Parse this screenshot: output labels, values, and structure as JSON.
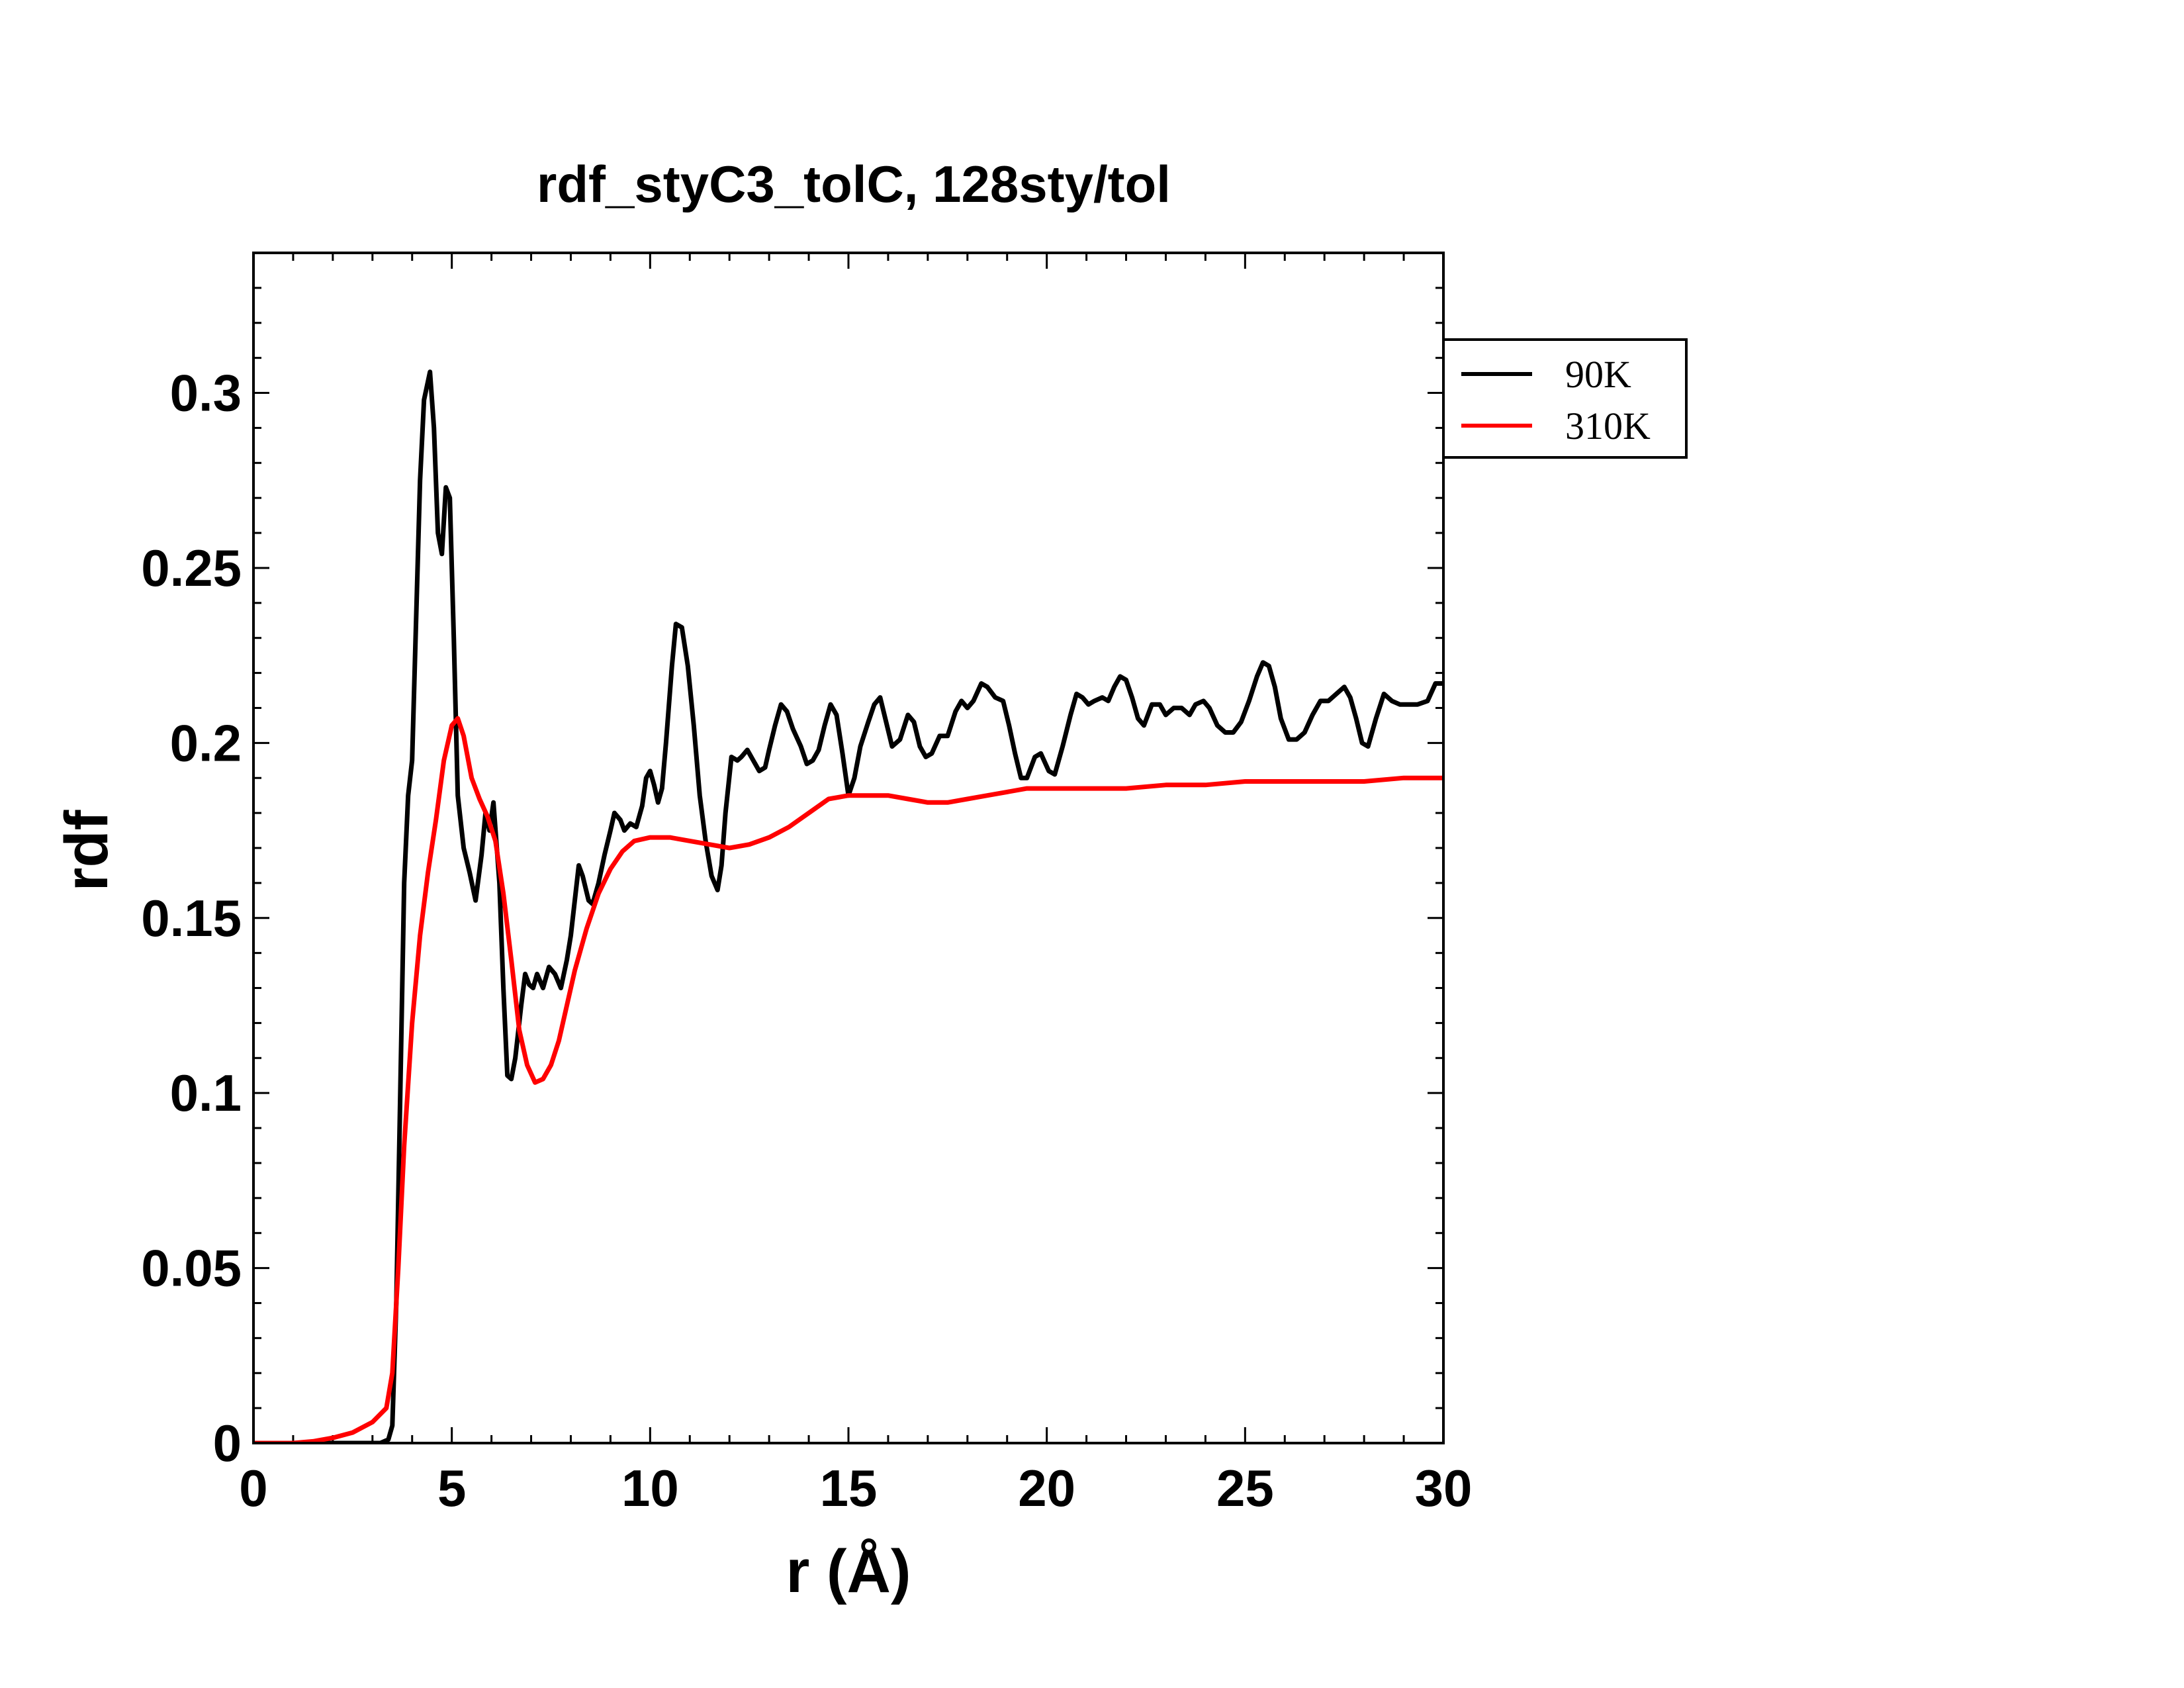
{
  "chart_data": {
    "type": "line",
    "title": "rdf_styC3_tolC, 128sty/tol",
    "xlabel": "r (Å)",
    "ylabel": "rdf",
    "xlim": [
      0,
      30
    ],
    "ylim": [
      0,
      0.34
    ],
    "x_ticks": [
      0,
      5,
      10,
      15,
      20,
      25,
      30
    ],
    "x_tick_labels": [
      "0",
      "5",
      "10",
      "15",
      "20",
      "25",
      "30"
    ],
    "y_ticks": [
      0,
      0.05,
      0.1,
      0.15,
      0.2,
      0.25,
      0.3
    ],
    "y_tick_labels": [
      "0",
      "0.05",
      "0.1",
      "0.15",
      "0.2",
      "0.25",
      "0.3"
    ],
    "grid": false,
    "legend_position": "outside-right-top",
    "series": [
      {
        "name": "90K",
        "color": "#000000",
        "points": [
          [
            0,
            0
          ],
          [
            3.2,
            0
          ],
          [
            3.4,
            0.001
          ],
          [
            3.5,
            0.005
          ],
          [
            3.6,
            0.04
          ],
          [
            3.7,
            0.1
          ],
          [
            3.8,
            0.16
          ],
          [
            3.9,
            0.185
          ],
          [
            4.0,
            0.195
          ],
          [
            4.1,
            0.235
          ],
          [
            4.2,
            0.275
          ],
          [
            4.3,
            0.298
          ],
          [
            4.45,
            0.306
          ],
          [
            4.55,
            0.29
          ],
          [
            4.65,
            0.26
          ],
          [
            4.75,
            0.254
          ],
          [
            4.85,
            0.273
          ],
          [
            4.95,
            0.27
          ],
          [
            5.05,
            0.23
          ],
          [
            5.15,
            0.185
          ],
          [
            5.3,
            0.17
          ],
          [
            5.45,
            0.163
          ],
          [
            5.6,
            0.155
          ],
          [
            5.75,
            0.168
          ],
          [
            5.85,
            0.18
          ],
          [
            5.95,
            0.175
          ],
          [
            6.05,
            0.183
          ],
          [
            6.2,
            0.16
          ],
          [
            6.3,
            0.13
          ],
          [
            6.4,
            0.105
          ],
          [
            6.5,
            0.104
          ],
          [
            6.6,
            0.11
          ],
          [
            6.75,
            0.125
          ],
          [
            6.85,
            0.134
          ],
          [
            6.95,
            0.131
          ],
          [
            7.05,
            0.13
          ],
          [
            7.15,
            0.134
          ],
          [
            7.3,
            0.13
          ],
          [
            7.45,
            0.136
          ],
          [
            7.6,
            0.134
          ],
          [
            7.75,
            0.13
          ],
          [
            7.9,
            0.138
          ],
          [
            8.0,
            0.145
          ],
          [
            8.1,
            0.155
          ],
          [
            8.2,
            0.165
          ],
          [
            8.3,
            0.162
          ],
          [
            8.45,
            0.155
          ],
          [
            8.55,
            0.154
          ],
          [
            8.7,
            0.16
          ],
          [
            8.85,
            0.168
          ],
          [
            9.0,
            0.175
          ],
          [
            9.1,
            0.18
          ],
          [
            9.25,
            0.178
          ],
          [
            9.35,
            0.175
          ],
          [
            9.5,
            0.177
          ],
          [
            9.65,
            0.176
          ],
          [
            9.8,
            0.182
          ],
          [
            9.9,
            0.19
          ],
          [
            10.0,
            0.192
          ],
          [
            10.1,
            0.188
          ],
          [
            10.2,
            0.183
          ],
          [
            10.3,
            0.187
          ],
          [
            10.4,
            0.2
          ],
          [
            10.55,
            0.222
          ],
          [
            10.65,
            0.234
          ],
          [
            10.8,
            0.233
          ],
          [
            10.95,
            0.222
          ],
          [
            11.1,
            0.205
          ],
          [
            11.25,
            0.185
          ],
          [
            11.4,
            0.172
          ],
          [
            11.55,
            0.162
          ],
          [
            11.7,
            0.158
          ],
          [
            11.8,
            0.165
          ],
          [
            11.9,
            0.18
          ],
          [
            12.05,
            0.196
          ],
          [
            12.2,
            0.195
          ],
          [
            12.3,
            0.196
          ],
          [
            12.45,
            0.198
          ],
          [
            12.6,
            0.195
          ],
          [
            12.75,
            0.192
          ],
          [
            12.9,
            0.193
          ],
          [
            13.0,
            0.198
          ],
          [
            13.15,
            0.205
          ],
          [
            13.3,
            0.211
          ],
          [
            13.45,
            0.209
          ],
          [
            13.6,
            0.204
          ],
          [
            13.8,
            0.199
          ],
          [
            13.95,
            0.194
          ],
          [
            14.1,
            0.195
          ],
          [
            14.25,
            0.198
          ],
          [
            14.4,
            0.205
          ],
          [
            14.55,
            0.211
          ],
          [
            14.7,
            0.208
          ],
          [
            14.85,
            0.197
          ],
          [
            15.0,
            0.185
          ],
          [
            15.15,
            0.19
          ],
          [
            15.3,
            0.199
          ],
          [
            15.5,
            0.206
          ],
          [
            15.65,
            0.211
          ],
          [
            15.8,
            0.213
          ],
          [
            15.95,
            0.206
          ],
          [
            16.1,
            0.199
          ],
          [
            16.3,
            0.201
          ],
          [
            16.5,
            0.208
          ],
          [
            16.65,
            0.206
          ],
          [
            16.8,
            0.199
          ],
          [
            16.95,
            0.196
          ],
          [
            17.1,
            0.197
          ],
          [
            17.3,
            0.202
          ],
          [
            17.5,
            0.202
          ],
          [
            17.7,
            0.209
          ],
          [
            17.85,
            0.212
          ],
          [
            18.0,
            0.21
          ],
          [
            18.15,
            0.212
          ],
          [
            18.35,
            0.217
          ],
          [
            18.5,
            0.216
          ],
          [
            18.7,
            0.213
          ],
          [
            18.9,
            0.212
          ],
          [
            19.05,
            0.205
          ],
          [
            19.2,
            0.197
          ],
          [
            19.35,
            0.19
          ],
          [
            19.5,
            0.19
          ],
          [
            19.7,
            0.196
          ],
          [
            19.85,
            0.197
          ],
          [
            20.05,
            0.192
          ],
          [
            20.2,
            0.191
          ],
          [
            20.4,
            0.199
          ],
          [
            20.6,
            0.208
          ],
          [
            20.75,
            0.214
          ],
          [
            20.9,
            0.213
          ],
          [
            21.05,
            0.211
          ],
          [
            21.2,
            0.212
          ],
          [
            21.4,
            0.213
          ],
          [
            21.55,
            0.212
          ],
          [
            21.7,
            0.216
          ],
          [
            21.85,
            0.219
          ],
          [
            22.0,
            0.218
          ],
          [
            22.15,
            0.213
          ],
          [
            22.3,
            0.207
          ],
          [
            22.45,
            0.205
          ],
          [
            22.65,
            0.211
          ],
          [
            22.85,
            0.211
          ],
          [
            23.0,
            0.208
          ],
          [
            23.2,
            0.21
          ],
          [
            23.4,
            0.21
          ],
          [
            23.6,
            0.208
          ],
          [
            23.75,
            0.211
          ],
          [
            23.95,
            0.212
          ],
          [
            24.1,
            0.21
          ],
          [
            24.3,
            0.205
          ],
          [
            24.5,
            0.203
          ],
          [
            24.7,
            0.203
          ],
          [
            24.9,
            0.206
          ],
          [
            25.1,
            0.212
          ],
          [
            25.3,
            0.219
          ],
          [
            25.45,
            0.223
          ],
          [
            25.6,
            0.222
          ],
          [
            25.75,
            0.216
          ],
          [
            25.9,
            0.207
          ],
          [
            26.1,
            0.201
          ],
          [
            26.3,
            0.201
          ],
          [
            26.5,
            0.203
          ],
          [
            26.7,
            0.208
          ],
          [
            26.9,
            0.212
          ],
          [
            27.1,
            0.212
          ],
          [
            27.3,
            0.214
          ],
          [
            27.5,
            0.216
          ],
          [
            27.65,
            0.213
          ],
          [
            27.8,
            0.207
          ],
          [
            27.95,
            0.2
          ],
          [
            28.1,
            0.199
          ],
          [
            28.3,
            0.207
          ],
          [
            28.5,
            0.214
          ],
          [
            28.7,
            0.212
          ],
          [
            28.9,
            0.211
          ],
          [
            29.1,
            0.211
          ],
          [
            29.35,
            0.211
          ],
          [
            29.6,
            0.212
          ],
          [
            29.8,
            0.217
          ],
          [
            30,
            0.217
          ]
        ]
      },
      {
        "name": "310K",
        "color": "#ff0000",
        "points": [
          [
            0,
            0
          ],
          [
            1.0,
            0
          ],
          [
            1.5,
            0.0005
          ],
          [
            2.0,
            0.0015
          ],
          [
            2.5,
            0.003
          ],
          [
            3.0,
            0.006
          ],
          [
            3.35,
            0.01
          ],
          [
            3.5,
            0.02
          ],
          [
            3.65,
            0.05
          ],
          [
            3.8,
            0.085
          ],
          [
            4.0,
            0.12
          ],
          [
            4.2,
            0.145
          ],
          [
            4.4,
            0.163
          ],
          [
            4.6,
            0.178
          ],
          [
            4.8,
            0.195
          ],
          [
            5.0,
            0.205
          ],
          [
            5.15,
            0.207
          ],
          [
            5.3,
            0.202
          ],
          [
            5.5,
            0.19
          ],
          [
            5.7,
            0.184
          ],
          [
            5.9,
            0.179
          ],
          [
            6.1,
            0.172
          ],
          [
            6.3,
            0.157
          ],
          [
            6.5,
            0.138
          ],
          [
            6.7,
            0.118
          ],
          [
            6.9,
            0.108
          ],
          [
            7.1,
            0.103
          ],
          [
            7.3,
            0.104
          ],
          [
            7.5,
            0.108
          ],
          [
            7.7,
            0.115
          ],
          [
            7.9,
            0.125
          ],
          [
            8.1,
            0.135
          ],
          [
            8.4,
            0.147
          ],
          [
            8.7,
            0.157
          ],
          [
            9.0,
            0.164
          ],
          [
            9.3,
            0.169
          ],
          [
            9.6,
            0.172
          ],
          [
            10.0,
            0.173
          ],
          [
            10.5,
            0.173
          ],
          [
            11.0,
            0.172
          ],
          [
            11.5,
            0.171
          ],
          [
            12.0,
            0.17
          ],
          [
            12.5,
            0.171
          ],
          [
            13.0,
            0.173
          ],
          [
            13.5,
            0.176
          ],
          [
            14.0,
            0.18
          ],
          [
            14.5,
            0.184
          ],
          [
            15.0,
            0.185
          ],
          [
            15.5,
            0.185
          ],
          [
            16.0,
            0.185
          ],
          [
            16.5,
            0.184
          ],
          [
            17.0,
            0.183
          ],
          [
            17.5,
            0.183
          ],
          [
            18.0,
            0.184
          ],
          [
            18.5,
            0.185
          ],
          [
            19.0,
            0.186
          ],
          [
            19.5,
            0.187
          ],
          [
            20.0,
            0.187
          ],
          [
            21.0,
            0.187
          ],
          [
            22.0,
            0.187
          ],
          [
            23.0,
            0.188
          ],
          [
            24.0,
            0.188
          ],
          [
            25.0,
            0.189
          ],
          [
            26.0,
            0.189
          ],
          [
            27.0,
            0.189
          ],
          [
            28.0,
            0.189
          ],
          [
            29.0,
            0.19
          ],
          [
            30,
            0.19
          ]
        ]
      }
    ]
  }
}
